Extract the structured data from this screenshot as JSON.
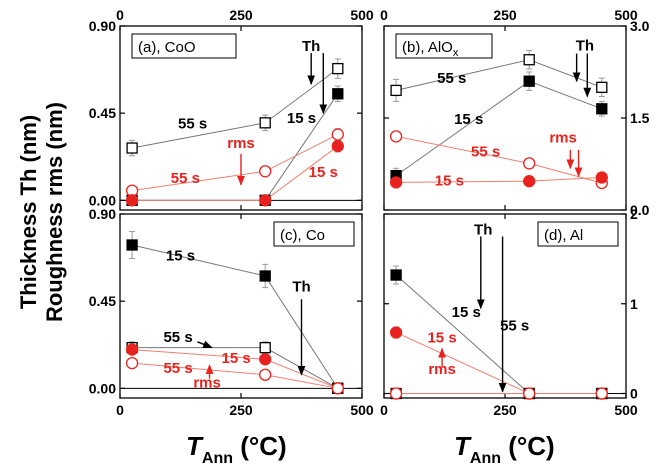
{
  "y_axis_label_line1": "Thickness Th (nm)",
  "y_axis_label_line2": "Roughness rms (nm)",
  "x_axis_label": {
    "main": "T",
    "sub": "Ann",
    "unit": " (°C)"
  },
  "colors": {
    "black_series": "#000000",
    "red_series": "#e8231f",
    "line_black": "#777777",
    "line_red": "#f08070"
  },
  "chart_data": [
    {
      "type": "scatter",
      "panel_label": "(a), CoO",
      "xlim": [
        0,
        500
      ],
      "x_ticks": [
        "0",
        "250",
        "500"
      ],
      "x_ticks_position": "top",
      "ylim": [
        -0.05,
        0.9
      ],
      "y_ticks": [
        "0.00",
        "0.45",
        "0.90"
      ],
      "y_ticks_position": "left",
      "series": [
        {
          "name": "55 s",
          "quantity": "Th",
          "marker": "open-square",
          "color": "black",
          "x": [
            25,
            300,
            450
          ],
          "y": [
            0.27,
            0.4,
            0.68
          ],
          "err": [
            0.04,
            0.04,
            0.05
          ]
        },
        {
          "name": "15 s",
          "quantity": "Th",
          "marker": "filled-square",
          "color": "black",
          "x": [
            25,
            300,
            450
          ],
          "y": [
            0.0,
            0.0,
            0.55
          ],
          "err": [
            0,
            0,
            0.04
          ]
        },
        {
          "name": "55 s",
          "quantity": "rms",
          "marker": "open-circle",
          "color": "red",
          "x": [
            25,
            300,
            450
          ],
          "y": [
            0.05,
            0.15,
            0.34
          ],
          "err": [
            0.02,
            0.02,
            0.03
          ]
        },
        {
          "name": "15 s",
          "quantity": "rms",
          "marker": "filled-circle",
          "color": "red",
          "x": [
            25,
            300,
            450
          ],
          "y": [
            0.0,
            0.0,
            0.28
          ],
          "err": [
            0,
            0,
            0.03
          ]
        }
      ],
      "annotations": [
        {
          "text": "Th",
          "color": "black",
          "x": 395,
          "y": 0.77
        },
        {
          "text": "55 s",
          "color": "black",
          "x": 150,
          "y": 0.37
        },
        {
          "text": "15 s",
          "color": "black",
          "x": 375,
          "y": 0.4
        },
        {
          "text": "rms",
          "color": "red",
          "x": 250,
          "y": 0.27
        },
        {
          "text": "55 s",
          "color": "red",
          "x": 135,
          "y": 0.09
        },
        {
          "text": "15 s",
          "color": "red",
          "x": 420,
          "y": 0.12
        }
      ],
      "arrows": [
        {
          "color": "black",
          "from": [
            395,
            0.76
          ],
          "to": [
            395,
            0.6
          ]
        },
        {
          "color": "black",
          "from": [
            420,
            0.76
          ],
          "to": [
            420,
            0.45
          ]
        },
        {
          "color": "red",
          "from": [
            250,
            0.24
          ],
          "to": [
            250,
            0.08
          ]
        }
      ]
    },
    {
      "type": "scatter",
      "panel_label": "(b), AlO",
      "panel_label_sub": "x",
      "xlim": [
        0,
        500
      ],
      "x_ticks": [
        "0",
        "250",
        "500"
      ],
      "x_ticks_position": "top",
      "ylim": [
        0,
        3.0
      ],
      "y_ticks": [
        "0.0",
        "1.5",
        "3.0"
      ],
      "y_ticks_position": "right",
      "series": [
        {
          "name": "55 s",
          "quantity": "Th",
          "marker": "open-square",
          "color": "black",
          "x": [
            25,
            300,
            450
          ],
          "y": [
            1.95,
            2.45,
            2.0
          ],
          "err": [
            0.18,
            0.15,
            0.15
          ]
        },
        {
          "name": "15 s",
          "quantity": "Th",
          "marker": "filled-square",
          "color": "black",
          "x": [
            25,
            300,
            450
          ],
          "y": [
            0.56,
            2.1,
            1.65
          ],
          "err": [
            0.12,
            0.15,
            0.12
          ]
        },
        {
          "name": "55 s",
          "quantity": "rms",
          "marker": "open-circle",
          "color": "red",
          "x": [
            25,
            300,
            450
          ],
          "y": [
            1.2,
            0.76,
            0.44
          ],
          "err": [
            0.08,
            0.08,
            0.06
          ]
        },
        {
          "name": "15 s",
          "quantity": "rms",
          "marker": "filled-circle",
          "color": "red",
          "x": [
            25,
            300,
            450
          ],
          "y": [
            0.45,
            0.47,
            0.53
          ],
          "err": [
            0.05,
            0.05,
            0.05
          ]
        }
      ],
      "annotations": [
        {
          "text": "Th",
          "color": "black",
          "x": 415,
          "y": 2.6
        },
        {
          "text": "55 s",
          "color": "black",
          "x": 140,
          "y": 2.07
        },
        {
          "text": "15 s",
          "color": "black",
          "x": 175,
          "y": 1.4
        },
        {
          "text": "rms",
          "color": "red",
          "x": 370,
          "y": 1.1
        },
        {
          "text": "55 s",
          "color": "red",
          "x": 210,
          "y": 0.87
        },
        {
          "text": "15 s",
          "color": "red",
          "x": 135,
          "y": 0.4
        }
      ],
      "arrows": [
        {
          "color": "black",
          "from": [
            398,
            2.55
          ],
          "to": [
            398,
            2.1
          ]
        },
        {
          "color": "black",
          "from": [
            420,
            2.55
          ],
          "to": [
            420,
            1.85
          ]
        },
        {
          "color": "red",
          "from": [
            385,
            0.98
          ],
          "to": [
            385,
            0.68
          ]
        },
        {
          "color": "red",
          "from": [
            402,
            0.98
          ],
          "to": [
            402,
            0.55
          ]
        }
      ]
    },
    {
      "type": "scatter",
      "panel_label": "(c), Co",
      "xlim": [
        0,
        500
      ],
      "x_ticks": [
        "0",
        "250",
        "500"
      ],
      "x_ticks_position": "bottom",
      "ylim": [
        -0.05,
        0.9
      ],
      "y_ticks": [
        "0.00",
        "0.45",
        "0.90"
      ],
      "y_ticks_position": "left",
      "series": [
        {
          "name": "15 s",
          "quantity": "Th",
          "marker": "filled-square",
          "color": "black",
          "x": [
            25,
            300,
            450
          ],
          "y": [
            0.74,
            0.58,
            0.0
          ],
          "err": [
            0.07,
            0.06,
            0.01
          ]
        },
        {
          "name": "55 s",
          "quantity": "Th",
          "marker": "open-square",
          "color": "black",
          "x": [
            25,
            300,
            450
          ],
          "y": [
            0.21,
            0.21,
            0.0
          ],
          "err": [
            0.03,
            0.03,
            0.01
          ]
        },
        {
          "name": "15 s",
          "quantity": "rms",
          "marker": "filled-circle",
          "color": "red",
          "x": [
            25,
            300,
            450
          ],
          "y": [
            0.2,
            0.15,
            0.0
          ],
          "err": [
            0.02,
            0.02,
            0.01
          ]
        },
        {
          "name": "55 s",
          "quantity": "rms",
          "marker": "open-circle",
          "color": "red",
          "x": [
            25,
            300,
            450
          ],
          "y": [
            0.13,
            0.07,
            0.0
          ],
          "err": [
            0.02,
            0.02,
            0.01
          ]
        }
      ],
      "annotations": [
        {
          "text": "15 s",
          "color": "black",
          "x": 125,
          "y": 0.66
        },
        {
          "text": "Th",
          "color": "black",
          "x": 375,
          "y": 0.5
        },
        {
          "text": "55 s",
          "color": "black",
          "x": 120,
          "y": 0.24
        },
        {
          "text": "15 s",
          "color": "red",
          "x": 240,
          "y": 0.13
        },
        {
          "text": "55 s",
          "color": "red",
          "x": 120,
          "y": 0.08
        },
        {
          "text": "rms",
          "color": "red",
          "x": 180,
          "y": 0.005
        }
      ],
      "arrows": [
        {
          "color": "black",
          "from": [
            375,
            0.46
          ],
          "to": [
            375,
            0.07
          ]
        },
        {
          "color": "black",
          "from": [
            160,
            0.24
          ],
          "to": [
            190,
            0.21
          ]
        },
        {
          "color": "red",
          "from": [
            185,
            0.05
          ],
          "to": [
            185,
            0.12
          ]
        }
      ]
    },
    {
      "type": "scatter",
      "panel_label": "(d), Al",
      "xlim": [
        0,
        500
      ],
      "x_ticks": [
        "0",
        "250",
        "500"
      ],
      "x_ticks_position": "bottom",
      "ylim": [
        -0.05,
        2
      ],
      "y_ticks": [
        "0",
        "1",
        "2"
      ],
      "y_ticks_position": "right",
      "series": [
        {
          "name": "15 s",
          "quantity": "Th",
          "marker": "filled-square",
          "color": "black",
          "x": [
            25,
            300,
            450
          ],
          "y": [
            1.32,
            0.0,
            0.0
          ],
          "err": [
            0.1,
            0.01,
            0.01
          ]
        },
        {
          "name": "55 s",
          "quantity": "Th",
          "marker": "open-square",
          "color": "black",
          "x": [
            25,
            300,
            450
          ],
          "y": [
            0.0,
            0.0,
            0.0
          ],
          "err": [
            0.01,
            0.01,
            0.01
          ]
        },
        {
          "name": "15 s",
          "quantity": "rms",
          "marker": "filled-circle",
          "color": "red",
          "x": [
            25,
            300,
            450
          ],
          "y": [
            0.68,
            0.0,
            0.0
          ],
          "err": [
            0.06,
            0.01,
            0.01
          ]
        },
        {
          "name": "55 s",
          "quantity": "rms",
          "marker": "open-circle",
          "color": "red",
          "x": [
            25,
            300,
            450
          ],
          "y": [
            0.0,
            0.0,
            0.0
          ],
          "err": [
            0.01,
            0.01,
            0.01
          ]
        }
      ],
      "annotations": [
        {
          "text": "Th",
          "color": "black",
          "x": 205,
          "y": 1.77
        },
        {
          "text": "15 s",
          "color": "black",
          "x": 170,
          "y": 0.85
        },
        {
          "text": "55 s",
          "color": "black",
          "x": 270,
          "y": 0.7
        },
        {
          "text": "15 s",
          "color": "red",
          "x": 120,
          "y": 0.57
        },
        {
          "text": "rms",
          "color": "red",
          "x": 120,
          "y": 0.22
        }
      ],
      "arrows": [
        {
          "color": "black",
          "from": [
            200,
            1.75
          ],
          "to": [
            200,
            0.95
          ]
        },
        {
          "color": "black",
          "from": [
            245,
            1.75
          ],
          "to": [
            245,
            0.02
          ]
        },
        {
          "color": "red",
          "from": [
            120,
            0.3
          ],
          "to": [
            120,
            0.5
          ]
        }
      ]
    }
  ]
}
